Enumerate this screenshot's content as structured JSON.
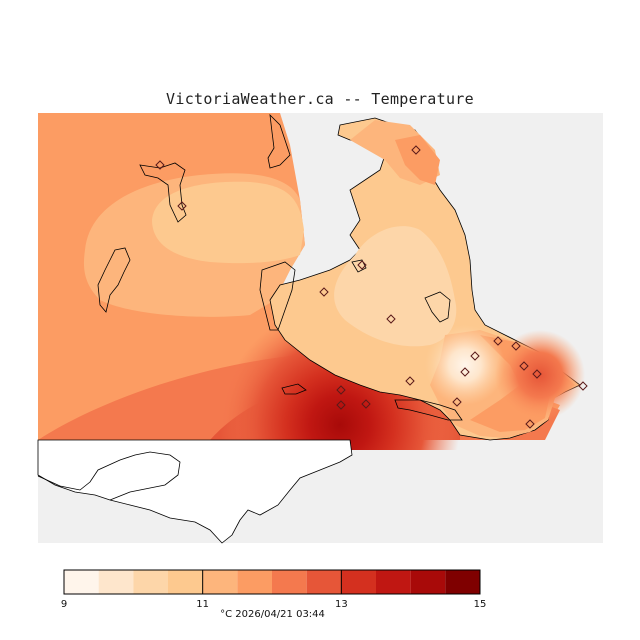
{
  "title": "VictoriaWeather.ca -- Temperature",
  "colorbar": {
    "min": 9,
    "max": 15,
    "step": 0.5,
    "tick_labels": [
      "9",
      "11",
      "13",
      "15"
    ],
    "colors": [
      "#fff5eb",
      "#fee6cc",
      "#fdd6a9",
      "#fdc98f",
      "#fdb57c",
      "#fc9c63",
      "#f4794e",
      "#e65638",
      "#d4301f",
      "#c01712",
      "#a80a09",
      "#7f0000"
    ]
  },
  "caption": {
    "unit": "°C",
    "timestamp": "2026/04/21 03:44"
  },
  "colors": {
    "no_data": "#f0f0f0",
    "land_outline": "#000000",
    "station_marker": "#5a1a1a"
  },
  "stations_count_note": ""
}
